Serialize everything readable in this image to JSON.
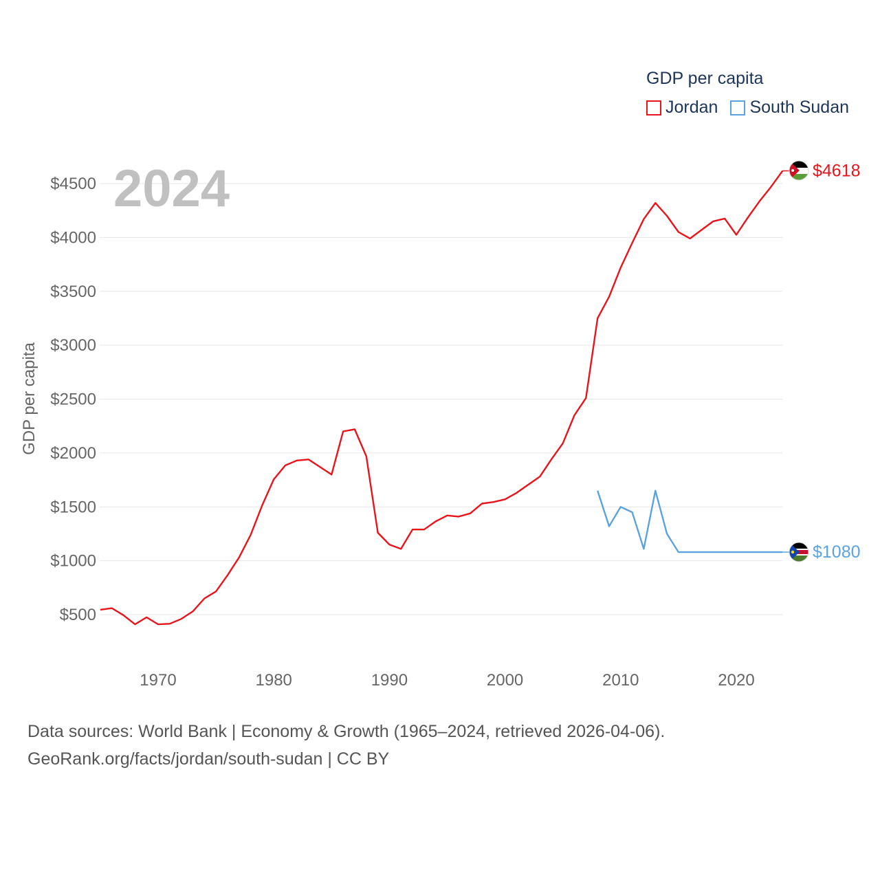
{
  "legend": {
    "title": "GDP per capita",
    "items": [
      {
        "label": "Jordan",
        "color": "#e8131b"
      },
      {
        "label": "South Sudan",
        "color": "#5ba3e0"
      }
    ]
  },
  "footer": {
    "line1": "Data sources: World Bank | Economy & Growth (1965–2024, retrieved 2026-04-06).",
    "line2": "GeoRank.org/facts/jordan/south-sudan | CC BY"
  },
  "chart_data": {
    "type": "line",
    "title": "GDP per capita",
    "year_label": "2024",
    "ylabel": "GDP per capita",
    "xlabel": "",
    "xlim": [
      1965,
      2024
    ],
    "ylim": [
      300,
      4750
    ],
    "y_ticks": [
      500,
      1000,
      1500,
      2000,
      2500,
      3000,
      3500,
      4000,
      4500
    ],
    "y_tick_labels": [
      "$500",
      "$1000",
      "$1500",
      "$2000",
      "$2500",
      "$3000",
      "$3500",
      "$4000",
      "$4500"
    ],
    "x_ticks": [
      1970,
      1980,
      1990,
      2000,
      2010,
      2020
    ],
    "x_tick_labels": [
      "1970",
      "1980",
      "1990",
      "2000",
      "2010",
      "2020"
    ],
    "grid": true,
    "series": [
      {
        "name": "Jordan",
        "color": "#e8131b",
        "end_label": "$4618",
        "x": [
          1965,
          1966,
          1967,
          1968,
          1969,
          1970,
          1971,
          1972,
          1973,
          1974,
          1975,
          1976,
          1977,
          1978,
          1979,
          1980,
          1981,
          1982,
          1983,
          1984,
          1985,
          1986,
          1987,
          1988,
          1989,
          1990,
          1991,
          1992,
          1993,
          1994,
          1995,
          1996,
          1997,
          1998,
          1999,
          2000,
          2001,
          2002,
          2003,
          2004,
          2005,
          2006,
          2007,
          2008,
          2009,
          2010,
          2011,
          2012,
          2013,
          2014,
          2015,
          2016,
          2017,
          2018,
          2019,
          2020,
          2021,
          2022,
          2023,
          2024
        ],
        "values": [
          545,
          560,
          495,
          410,
          475,
          410,
          415,
          460,
          530,
          650,
          715,
          865,
          1030,
          1240,
          1515,
          1755,
          1885,
          1930,
          1940,
          1870,
          1800,
          2200,
          2220,
          1970,
          1260,
          1150,
          1110,
          1290,
          1290,
          1365,
          1420,
          1410,
          1440,
          1530,
          1545,
          1570,
          1630,
          1705,
          1780,
          1940,
          2090,
          2350,
          2510,
          3250,
          3450,
          3720,
          3950,
          4170,
          4320,
          4200,
          4050,
          3990,
          4070,
          4150,
          4175,
          4025,
          4185,
          4335,
          4470,
          4618
        ]
      },
      {
        "name": "South Sudan",
        "color": "#5ba3e0",
        "end_label": "$1080",
        "x": [
          2008,
          2009,
          2010,
          2011,
          2012,
          2013,
          2014,
          2015,
          2016,
          2017,
          2018,
          2019,
          2020,
          2021,
          2022,
          2023,
          2024
        ],
        "values": [
          1650,
          1320,
          1500,
          1450,
          1110,
          1650,
          1250,
          1080,
          1080,
          1080,
          1080,
          1080,
          1080,
          1080,
          1080,
          1080,
          1080
        ]
      }
    ]
  }
}
